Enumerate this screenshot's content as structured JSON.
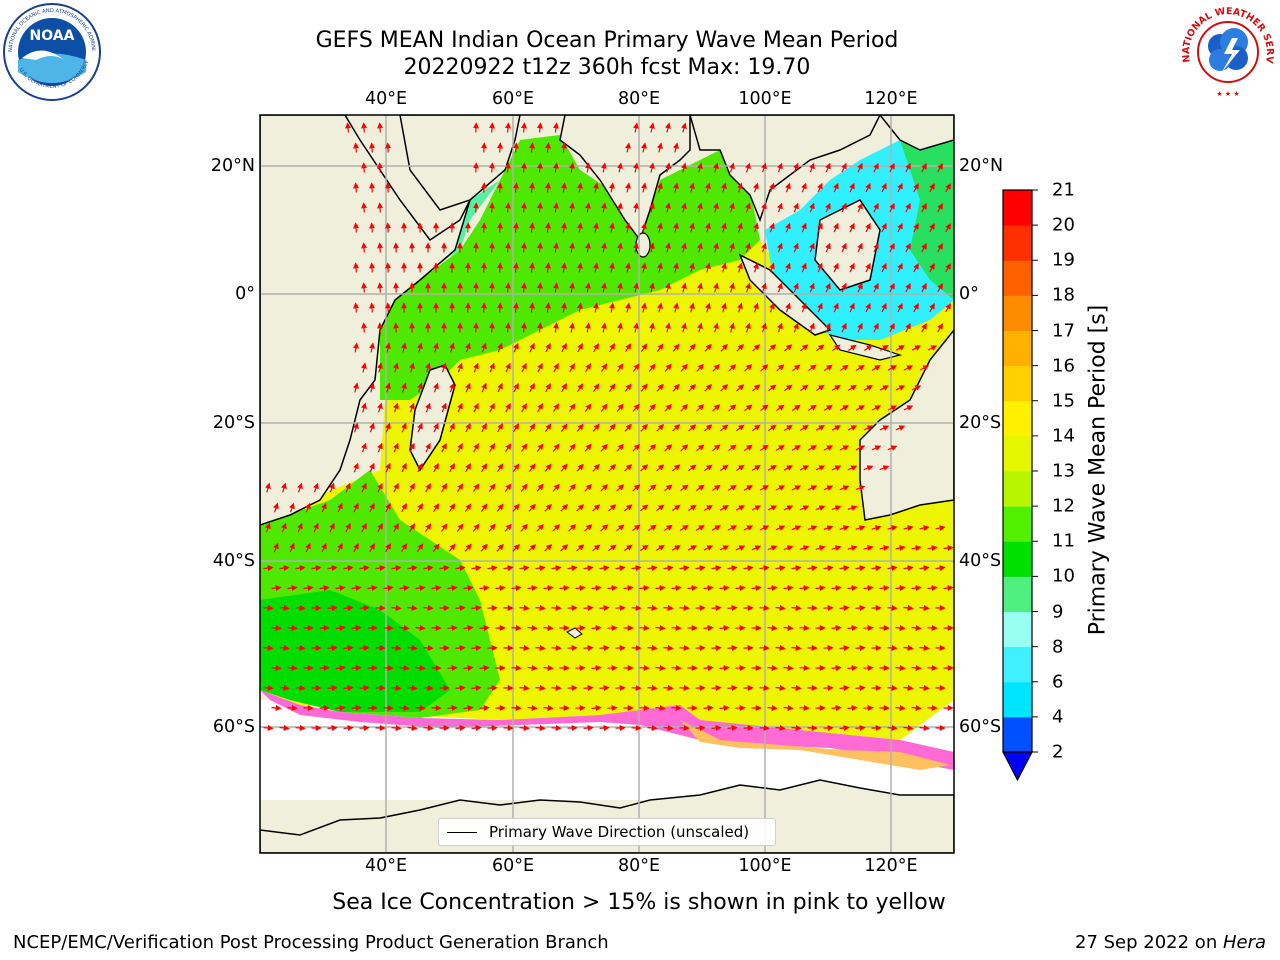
{
  "header": {
    "title_line1": "GEFS MEAN Indian Ocean Primary Wave Mean Period",
    "title_line2": "20220922 t12z 360h fcst   Max: 19.70"
  },
  "logos": {
    "left": {
      "name": "NOAA",
      "ring_text": "NATIONAL OCEANIC AND ATMOSPHERIC ADMINISTRATION",
      "bottom_text": "U.S. DEPARTMENT OF COMMERCE"
    },
    "right": {
      "ring_text": "NATIONAL WEATHER SERVICE"
    }
  },
  "map": {
    "lon_labels": [
      "40°E",
      "60°E",
      "80°E",
      "100°E",
      "120°E"
    ],
    "lat_labels": [
      "20°N",
      "0°",
      "20°S",
      "40°S",
      "60°S"
    ],
    "legend_label": "Primary Wave Direction (unscaled)",
    "arrow_color": "#ff0000",
    "land_color": "#efefdc",
    "grid_color": "#b0b0b0"
  },
  "colorbar": {
    "title": "Primary Wave Mean Period [s]",
    "ticks": [
      "2",
      "4",
      "6",
      "8",
      "9",
      "10",
      "11",
      "12",
      "13",
      "14",
      "15",
      "16",
      "17",
      "18",
      "19",
      "20",
      "21"
    ],
    "colors": [
      "#0050ff",
      "#00e5ff",
      "#40f0ff",
      "#99fff0",
      "#50f080",
      "#00e000",
      "#50f000",
      "#b8f500",
      "#e6f500",
      "#fff000",
      "#ffd000",
      "#ffb000",
      "#ff8c00",
      "#ff6000",
      "#ff3000",
      "#ff0000"
    ],
    "under_color": "#0000ff"
  },
  "subtitle": "Sea Ice Concentration > 15% is shown in pink to yellow",
  "footer": {
    "left": "NCEP/EMC/Verification Post Processing Product Generation Branch",
    "right_date": "27 Sep 2022 on ",
    "right_host": "Hera"
  }
}
